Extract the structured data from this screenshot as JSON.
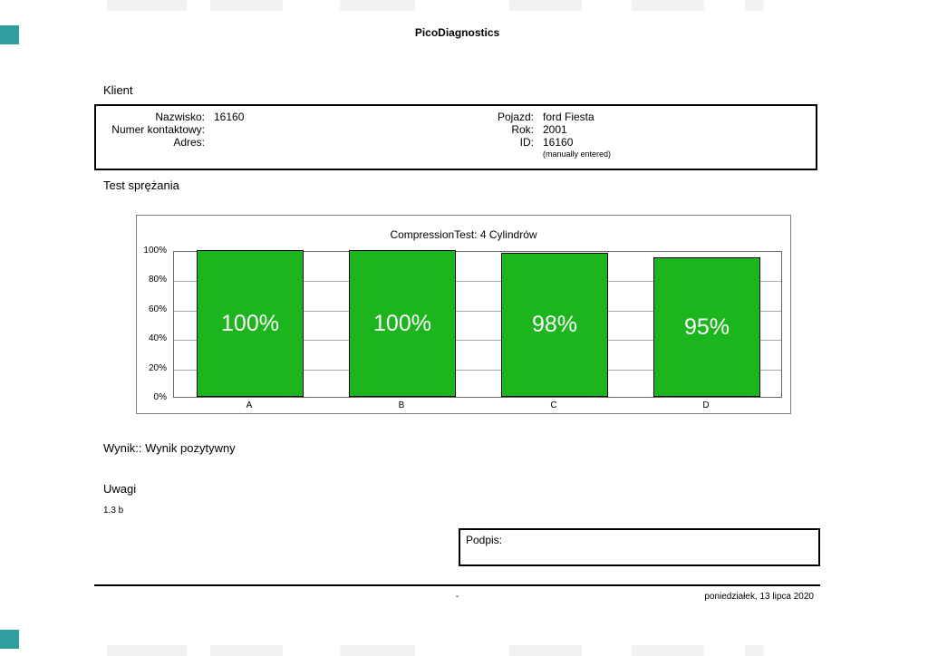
{
  "report": {
    "title": "PicoDiagnostics"
  },
  "client": {
    "section_title": "Klient",
    "left": [
      {
        "label": "Nazwisko:",
        "value": "16160"
      },
      {
        "label": "Numer kontaktowy:",
        "value": ""
      },
      {
        "label": "Adres:",
        "value": ""
      }
    ],
    "right": [
      {
        "label": "Pojazd:",
        "value": "ford Fiesta"
      },
      {
        "label": "Rok:",
        "value": "2001"
      },
      {
        "label": "ID:",
        "value": "16160"
      }
    ],
    "note": "(manually entered)"
  },
  "test": {
    "section_title": "Test sprężania"
  },
  "chart_data": {
    "type": "bar",
    "title": "CompressionTest: 4 Cylindrów",
    "categories": [
      "A",
      "B",
      "C",
      "D"
    ],
    "values": [
      100,
      100,
      98,
      95
    ],
    "bar_labels": [
      "100%",
      "100%",
      "98%",
      "95%"
    ],
    "ylim": [
      0,
      100
    ],
    "yticks": [
      "100%",
      "80%",
      "60%",
      "40%",
      "20%",
      "0%"
    ],
    "grid": true,
    "legend": "none",
    "bar_color": "#1db51d",
    "bar_border_color": "#000000"
  },
  "result": {
    "text": "Wynik:: Wynik pozytywny"
  },
  "notes": {
    "section_title": "Uwagi",
    "text": "1.3 b"
  },
  "signature": {
    "label": "Podpis:"
  },
  "footer": {
    "center": "-",
    "date": "poniedziałek, 13 lipca 2020"
  }
}
